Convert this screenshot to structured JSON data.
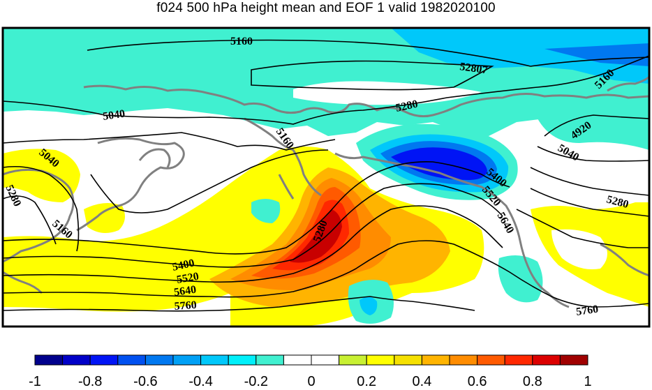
{
  "title": "f024 500 hPa height mean and EOF 1 valid 1982020100",
  "contour_labels": [
    "5160",
    "52807",
    "5280",
    "5160",
    "5040",
    "5160",
    "5040",
    "5280",
    "5160",
    "5400",
    "5520",
    "5640",
    "5760",
    "5280",
    "5400",
    "5520",
    "5640",
    "4920",
    "5040",
    "5280",
    "5760"
  ],
  "colorbar": {
    "ticks": [
      "-1",
      "-0.8",
      "-0.6",
      "-0.4",
      "-0.2",
      "0",
      "0.2",
      "0.4",
      "0.6",
      "0.8",
      "1"
    ],
    "colors": [
      "#00008c",
      "#0000c8",
      "#0014f5",
      "#0050f0",
      "#0078f0",
      "#00a0f5",
      "#00c8fa",
      "#00f0fa",
      "#40f0d0",
      "#ffffff",
      "#ffffff",
      "#c8f032",
      "#ffff00",
      "#f5e000",
      "#ffb400",
      "#ff8c00",
      "#ff5a00",
      "#ff2800",
      "#dc0000",
      "#a00000"
    ]
  },
  "map_colors": {
    "cyan": "#40f0d0",
    "light_blue": "#00c8fa",
    "blue": "#0078f0",
    "dark_blue": "#0014f5",
    "yellow": "#ffff00",
    "orange": "#ffb400",
    "dark_orange": "#ff8c00",
    "red": "#ff2800",
    "dark_red": "#c80000",
    "coast": "#808080"
  }
}
